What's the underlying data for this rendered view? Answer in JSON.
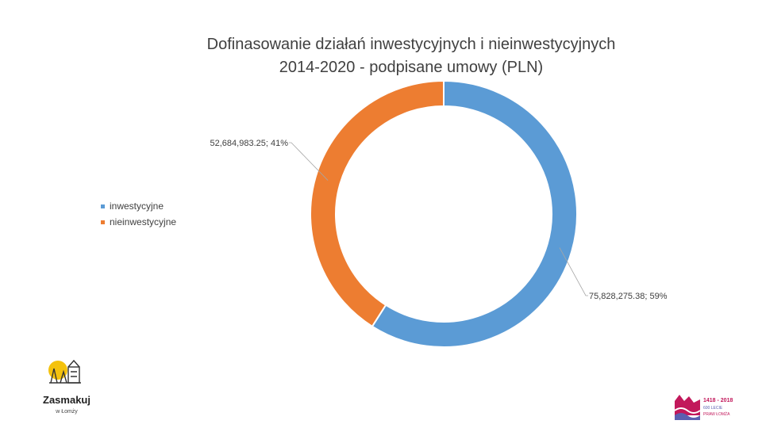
{
  "chart_data": {
    "type": "pie",
    "variant": "donut",
    "title_line1": "Dofinasowanie działań inwestycyjnych i nieinwestycyjnych",
    "title_line2": "2014-2020 - podpisane umowy (PLN)",
    "legend_position": "left",
    "slices": [
      {
        "name": "inwestycyjne",
        "value": 75828275.38,
        "percent": 59,
        "color": "#5b9bd5",
        "label": "75,828,275.38; 59%"
      },
      {
        "name": "nieinwestycyjne",
        "value": 52684983.25,
        "percent": 41,
        "color": "#ed7d31",
        "label": "52,684,983.25; 41%"
      }
    ]
  },
  "logos": {
    "left_text_line1": "Zasmakuj",
    "left_text_line2": "w Łomży",
    "right_text_line1": "1418 - 2018",
    "right_text_line2": "600 LECIE",
    "right_text_line3": "PRAW ŁOMŻA"
  }
}
